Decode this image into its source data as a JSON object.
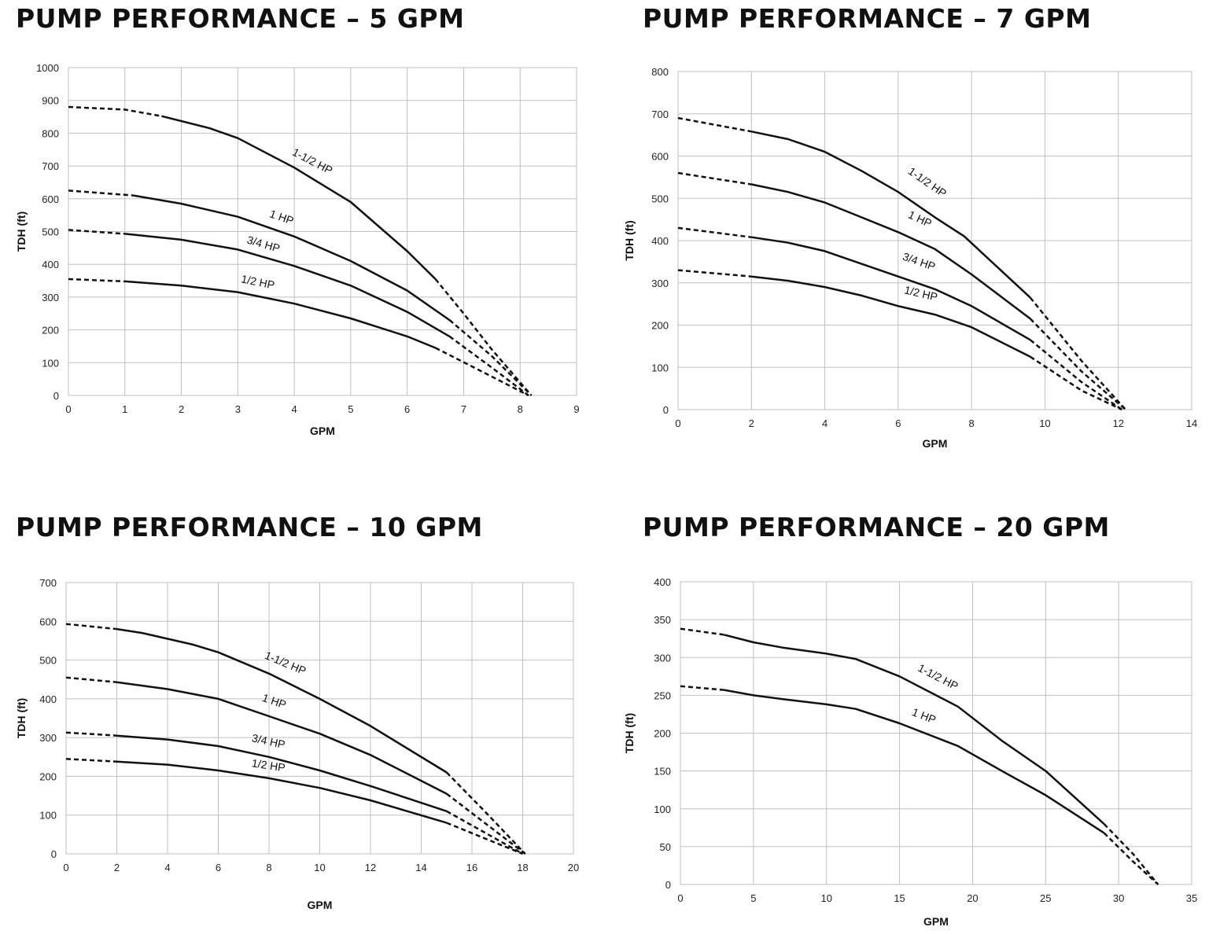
{
  "chart_data": [
    {
      "type": "line",
      "title": "PUMP PERFORMANCE – 5 GPM",
      "xlabel": "GPM",
      "ylabel": "TDH (ft)",
      "xlim": [
        0,
        9
      ],
      "xstep": 1,
      "ylim": [
        0,
        1000
      ],
      "ystep": 100,
      "grid": true,
      "series": [
        {
          "name": "1-1/2 HP",
          "dashed_start": [
            [
              0,
              880
            ],
            [
              1,
              872
            ],
            [
              1.65,
              852
            ]
          ],
          "solid": [
            [
              1.65,
              852
            ],
            [
              2.5,
              815
            ],
            [
              3,
              785
            ],
            [
              4,
              695
            ],
            [
              5,
              590
            ],
            [
              6,
              440
            ],
            [
              6.5,
              355
            ]
          ],
          "dashed_end": [
            [
              6.5,
              355
            ],
            [
              7,
              250
            ],
            [
              7.5,
              140
            ],
            [
              8,
              40
            ],
            [
              8.2,
              0
            ]
          ],
          "label_at": [
            3.95,
            735
          ]
        },
        {
          "name": "1 HP",
          "dashed_start": [
            [
              0,
              625
            ],
            [
              1,
              612
            ],
            [
              1.15,
              610
            ]
          ],
          "solid": [
            [
              1.15,
              610
            ],
            [
              2,
              585
            ],
            [
              3,
              545
            ],
            [
              4,
              485
            ],
            [
              5,
              410
            ],
            [
              6,
              320
            ],
            [
              6.75,
              230
            ]
          ],
          "dashed_end": [
            [
              6.75,
              230
            ],
            [
              7.5,
              120
            ],
            [
              8.2,
              0
            ]
          ],
          "label_at": [
            3.55,
            545
          ]
        },
        {
          "name": "3/4 HP",
          "dashed_start": [
            [
              0,
              505
            ],
            [
              1,
              493
            ]
          ],
          "solid": [
            [
              1,
              493
            ],
            [
              2,
              475
            ],
            [
              3,
              445
            ],
            [
              4,
              395
            ],
            [
              5,
              335
            ],
            [
              6,
              255
            ],
            [
              6.75,
              180
            ]
          ],
          "dashed_end": [
            [
              6.75,
              180
            ],
            [
              7.5,
              85
            ],
            [
              8.15,
              0
            ]
          ],
          "label_at": [
            3.15,
            465
          ]
        },
        {
          "name": "1/2 HP",
          "dashed_start": [
            [
              0,
              355
            ],
            [
              1,
              348
            ]
          ],
          "solid": [
            [
              1,
              348
            ],
            [
              2,
              335
            ],
            [
              3,
              315
            ],
            [
              4,
              280
            ],
            [
              5,
              235
            ],
            [
              6,
              180
            ],
            [
              6.5,
              145
            ]
          ],
          "dashed_end": [
            [
              6.5,
              145
            ],
            [
              7.3,
              75
            ],
            [
              8.15,
              0
            ]
          ],
          "label_at": [
            3.05,
            345
          ]
        }
      ]
    },
    {
      "type": "line",
      "title": "PUMP PERFORMANCE – 7 GPM",
      "xlabel": "GPM",
      "ylabel": "TDH (ft)",
      "xlim": [
        0,
        14
      ],
      "xstep": 2,
      "ylim": [
        0,
        800
      ],
      "ystep": 100,
      "grid": true,
      "series": [
        {
          "name": "1-1/2 HP",
          "dashed_start": [
            [
              0,
              690
            ],
            [
              2,
              658
            ]
          ],
          "solid": [
            [
              2,
              658
            ],
            [
              3,
              640
            ],
            [
              4,
              610
            ],
            [
              5,
              565
            ],
            [
              6,
              515
            ],
            [
              7,
              455
            ],
            [
              7.8,
              410
            ],
            [
              9.6,
              265
            ]
          ],
          "dashed_end": [
            [
              9.6,
              265
            ],
            [
              11,
              115
            ],
            [
              12.2,
              0
            ]
          ],
          "label_at": [
            6.25,
            560
          ]
        },
        {
          "name": "1 HP",
          "dashed_start": [
            [
              0,
              560
            ],
            [
              2,
              533
            ]
          ],
          "solid": [
            [
              2,
              533
            ],
            [
              3,
              515
            ],
            [
              4,
              490
            ],
            [
              5,
              455
            ],
            [
              6,
              420
            ],
            [
              7,
              380
            ],
            [
              8,
              320
            ],
            [
              9.6,
              215
            ]
          ],
          "dashed_end": [
            [
              9.6,
              215
            ],
            [
              11,
              90
            ],
            [
              12.2,
              0
            ]
          ],
          "label_at": [
            6.25,
            455
          ]
        },
        {
          "name": "3/4 HP",
          "dashed_start": [
            [
              0,
              430
            ],
            [
              2,
              408
            ]
          ],
          "solid": [
            [
              2,
              408
            ],
            [
              3,
              395
            ],
            [
              4,
              375
            ],
            [
              5,
              345
            ],
            [
              6,
              315
            ],
            [
              7,
              285
            ],
            [
              8,
              245
            ],
            [
              9.6,
              165
            ]
          ],
          "dashed_end": [
            [
              9.6,
              165
            ],
            [
              11,
              65
            ],
            [
              12.1,
              0
            ]
          ],
          "label_at": [
            6.1,
            355
          ]
        },
        {
          "name": "1/2 HP",
          "dashed_start": [
            [
              0,
              330
            ],
            [
              2,
              315
            ]
          ],
          "solid": [
            [
              2,
              315
            ],
            [
              3,
              305
            ],
            [
              4,
              290
            ],
            [
              5,
              270
            ],
            [
              6,
              245
            ],
            [
              7,
              225
            ],
            [
              8,
              195
            ],
            [
              9.6,
              125
            ]
          ],
          "dashed_end": [
            [
              9.6,
              125
            ],
            [
              11,
              45
            ],
            [
              12.1,
              0
            ]
          ],
          "label_at": [
            6.15,
            275
          ]
        }
      ]
    },
    {
      "type": "line",
      "title": "PUMP PERFORMANCE – 10 GPM",
      "xlabel": "GPM",
      "ylabel": "TDH (ft)",
      "xlim": [
        0,
        20
      ],
      "xstep": 2,
      "ylim": [
        0,
        700
      ],
      "ystep": 100,
      "grid": true,
      "series": [
        {
          "name": "1-1/2 HP",
          "dashed_start": [
            [
              0,
              593
            ],
            [
              2,
              580
            ]
          ],
          "solid": [
            [
              2,
              580
            ],
            [
              3,
              570
            ],
            [
              4,
              555
            ],
            [
              5,
              540
            ],
            [
              6,
              520
            ],
            [
              8,
              465
            ],
            [
              10,
              400
            ],
            [
              12,
              330
            ],
            [
              15,
              210
            ]
          ],
          "dashed_end": [
            [
              15,
              210
            ],
            [
              16.5,
              110
            ],
            [
              18.1,
              0
            ]
          ],
          "label_at": [
            7.8,
            505
          ]
        },
        {
          "name": "1 HP",
          "dashed_start": [
            [
              0,
              455
            ],
            [
              2,
              443
            ]
          ],
          "solid": [
            [
              2,
              443
            ],
            [
              4,
              425
            ],
            [
              6,
              400
            ],
            [
              8,
              355
            ],
            [
              10,
              310
            ],
            [
              12,
              255
            ],
            [
              15,
              155
            ]
          ],
          "dashed_end": [
            [
              15,
              155
            ],
            [
              16.5,
              80
            ],
            [
              18.1,
              0
            ]
          ],
          "label_at": [
            7.7,
            395
          ]
        },
        {
          "name": "3/4 HP",
          "dashed_start": [
            [
              0,
              313
            ],
            [
              2,
              305
            ]
          ],
          "solid": [
            [
              2,
              305
            ],
            [
              4,
              295
            ],
            [
              6,
              278
            ],
            [
              8,
              250
            ],
            [
              10,
              215
            ],
            [
              12,
              175
            ],
            [
              15,
              110
            ]
          ],
          "dashed_end": [
            [
              15,
              110
            ],
            [
              16.5,
              55
            ],
            [
              18,
              0
            ]
          ],
          "label_at": [
            7.3,
            290
          ]
        },
        {
          "name": "1/2 HP",
          "dashed_start": [
            [
              0,
              245
            ],
            [
              2,
              238
            ]
          ],
          "solid": [
            [
              2,
              238
            ],
            [
              4,
              230
            ],
            [
              6,
              215
            ],
            [
              8,
              195
            ],
            [
              10,
              170
            ],
            [
              12,
              138
            ],
            [
              15,
              80
            ]
          ],
          "dashed_end": [
            [
              15,
              80
            ],
            [
              16.5,
              40
            ],
            [
              18,
              0
            ]
          ],
          "label_at": [
            7.3,
            225
          ]
        }
      ]
    },
    {
      "type": "line",
      "title": "PUMP PERFORMANCE – 20 GPM",
      "xlabel": "GPM",
      "ylabel": "TDH (ft)",
      "xlim": [
        0,
        35
      ],
      "xstep": 5,
      "ylim": [
        0,
        400
      ],
      "ystep": 50,
      "grid": true,
      "series": [
        {
          "name": "1-1/2 HP",
          "dashed_start": [
            [
              0,
              338
            ],
            [
              3,
              330
            ]
          ],
          "solid": [
            [
              3,
              330
            ],
            [
              5,
              320
            ],
            [
              7,
              313
            ],
            [
              10,
              305
            ],
            [
              12,
              298
            ],
            [
              15,
              275
            ],
            [
              19,
              235
            ],
            [
              22,
              190
            ],
            [
              25,
              150
            ],
            [
              29,
              80
            ]
          ],
          "dashed_end": [
            [
              29,
              80
            ],
            [
              31,
              40
            ],
            [
              32.7,
              0
            ]
          ],
          "label_at": [
            16.2,
            283
          ]
        },
        {
          "name": "1 HP",
          "dashed_start": [
            [
              0,
              262
            ],
            [
              3,
              257
            ]
          ],
          "solid": [
            [
              3,
              257
            ],
            [
              5,
              250
            ],
            [
              7,
              245
            ],
            [
              10,
              238
            ],
            [
              12,
              232
            ],
            [
              15,
              213
            ],
            [
              19,
              183
            ],
            [
              22,
              150
            ],
            [
              25,
              118
            ],
            [
              29,
              68
            ]
          ],
          "dashed_end": [
            [
              29,
              68
            ],
            [
              31,
              30
            ],
            [
              32.7,
              0
            ]
          ],
          "label_at": [
            15.8,
            224
          ]
        }
      ]
    }
  ]
}
